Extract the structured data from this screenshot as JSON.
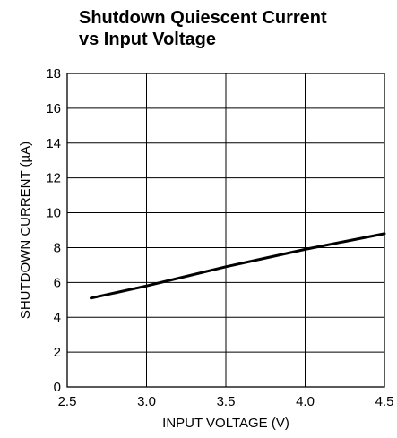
{
  "chart_data": {
    "type": "line",
    "title": "Shutdown Quiescent Current\nvs Input Voltage",
    "xlabel": "INPUT VOLTAGE (V)",
    "ylabel": "SHUTDOWN CURRENT (µA)",
    "xlim": [
      2.5,
      4.5
    ],
    "ylim": [
      0,
      18
    ],
    "xticks": [
      2.5,
      3.0,
      3.5,
      4.0,
      4.5
    ],
    "xtick_labels": [
      "2.5",
      "3.0",
      "3.5",
      "4.0",
      "4.5"
    ],
    "yticks": [
      0,
      2,
      4,
      6,
      8,
      10,
      12,
      14,
      16,
      18
    ],
    "ytick_labels": [
      "0",
      "2",
      "4",
      "6",
      "8",
      "10",
      "12",
      "14",
      "16",
      "18"
    ],
    "grid": true,
    "series": [
      {
        "x": [
          2.65,
          2.8,
          3.0,
          3.25,
          3.5,
          3.75,
          4.0,
          4.25,
          4.5
        ],
        "y": [
          5.1,
          5.4,
          5.8,
          6.35,
          6.9,
          7.4,
          7.9,
          8.35,
          8.8
        ],
        "color": "#000000"
      }
    ]
  }
}
